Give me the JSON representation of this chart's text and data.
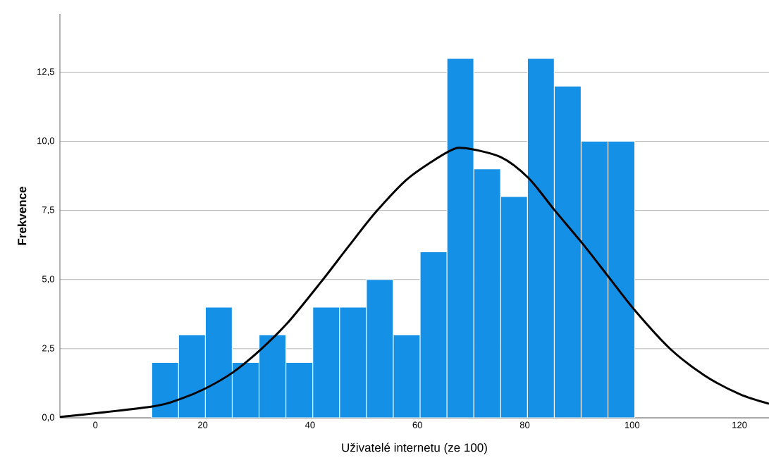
{
  "chart_data": {
    "type": "histogram",
    "xlabel": "Uživatelé internetu (ze 100)",
    "ylabel": "Frekvence",
    "bins": [
      10.5,
      15.5,
      20.5,
      25.5,
      30.5,
      35.5,
      40.5,
      45.5,
      50.5,
      55.5,
      60.5,
      65.5,
      70.5,
      75.5,
      80.5,
      85.5,
      90.5,
      95.5,
      100.5
    ],
    "values": [
      2,
      3,
      4,
      2,
      3,
      2,
      4,
      4,
      5,
      3,
      6,
      13,
      9,
      8,
      13,
      12,
      10,
      10
    ],
    "color": "#1490e6",
    "series": [
      {
        "type": "line",
        "color": "#000000",
        "x": [
          -6.6,
          10.6,
          15.8,
          20.4,
          25.6,
          30.7,
          35.9,
          42.0,
          47.1,
          52.3,
          58.4,
          65.9,
          68.9,
          75.5,
          80.7,
          85.5,
          90.8,
          95.6,
          100.4,
          107.0,
          113.5,
          120.1,
          125.5
        ],
        "values": [
          0.03,
          0.41,
          0.68,
          1.05,
          1.64,
          2.45,
          3.45,
          4.9,
          6.18,
          7.45,
          8.68,
          9.64,
          9.75,
          9.43,
          8.67,
          7.52,
          6.29,
          5.1,
          3.91,
          2.51,
          1.53,
          0.85,
          0.51
        ]
      }
    ],
    "xlim": [
      -6.6,
      125.5
    ],
    "ylim": [
      0,
      14.6
    ],
    "xticks": [
      0,
      20,
      40,
      60,
      80,
      100,
      120
    ],
    "yticks": [
      {
        "value": 0,
        "label": "0,0"
      },
      {
        "value": 2.5,
        "label": "2,5"
      },
      {
        "value": 5,
        "label": "5,0"
      },
      {
        "value": 7.5,
        "label": "7,5"
      },
      {
        "value": 10,
        "label": "10,0"
      },
      {
        "value": 12.5,
        "label": "12,5"
      }
    ],
    "grid": "y"
  }
}
